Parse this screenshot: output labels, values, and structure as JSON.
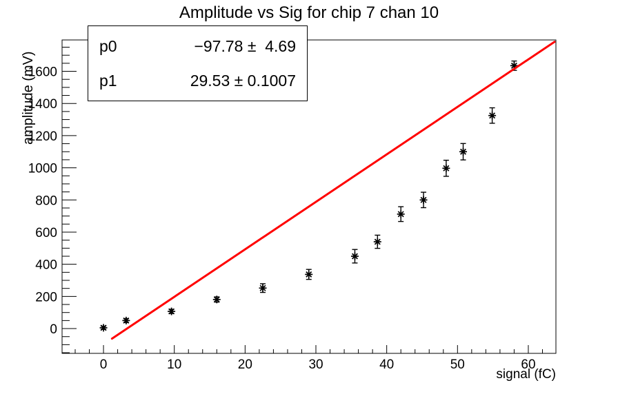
{
  "chart_data": {
    "type": "scatter",
    "title": "Amplitude vs Sig for chip 7 chan 10",
    "xlabel": "signal (fC)",
    "ylabel": "amplitude (mV)",
    "xlim": [
      -5.85,
      63.9
    ],
    "ylim": [
      -154,
      1795
    ],
    "xticks": [
      0,
      10,
      20,
      30,
      40,
      50,
      60
    ],
    "yticks": [
      0,
      200,
      400,
      600,
      800,
      1000,
      1200,
      1400,
      1600
    ],
    "x_minor_step": 2,
    "y_minor_step": 50,
    "grid": false,
    "marker_style": "asterisk",
    "marker_color": "#000000",
    "points": [
      {
        "x": 0.0,
        "y": 5,
        "yerr": 10
      },
      {
        "x": 3.2,
        "y": 50,
        "yerr": 12
      },
      {
        "x": 9.6,
        "y": 107,
        "yerr": 13
      },
      {
        "x": 16.0,
        "y": 181,
        "yerr": 16
      },
      {
        "x": 22.5,
        "y": 252,
        "yerr": 27
      },
      {
        "x": 29.0,
        "y": 337,
        "yerr": 31
      },
      {
        "x": 35.5,
        "y": 450,
        "yerr": 42
      },
      {
        "x": 38.7,
        "y": 540,
        "yerr": 41
      },
      {
        "x": 42.0,
        "y": 712,
        "yerr": 46
      },
      {
        "x": 45.2,
        "y": 800,
        "yerr": 48
      },
      {
        "x": 48.4,
        "y": 997,
        "yerr": 50
      },
      {
        "x": 50.8,
        "y": 1100,
        "yerr": 51
      },
      {
        "x": 54.9,
        "y": 1325,
        "yerr": 48
      },
      {
        "x": 58.0,
        "y": 1635,
        "yerr": 29
      }
    ],
    "fit_line": {
      "type": "linear",
      "p0": -97.78,
      "p1": 29.53,
      "x_start": 1.2,
      "x_end": 63.7,
      "color": "#ff0000"
    },
    "stats_box": {
      "rows": [
        {
          "label": "p0",
          "value": "−97.78 ±  4.69"
        },
        {
          "label": "p1",
          "value": "29.53 ± 0.1007"
        }
      ]
    }
  }
}
